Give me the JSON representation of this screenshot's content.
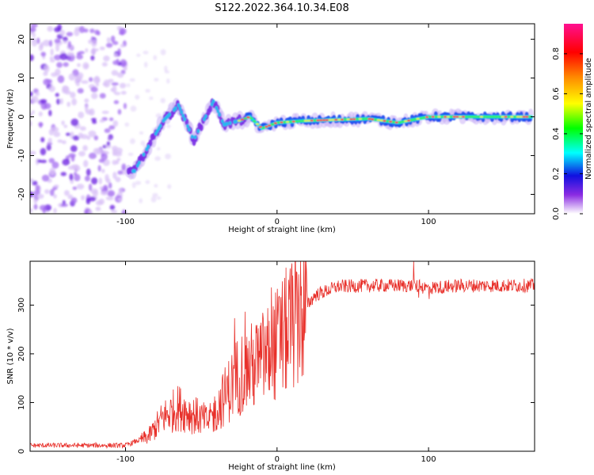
{
  "title": "S122.2022.364.10.34.E08",
  "chart_data": [
    {
      "type": "heatmap",
      "xlabel": "Height of straight line (km)",
      "ylabel": "Frequency (Hz)",
      "xlim": [
        -163,
        170
      ],
      "ylim": [
        -25,
        24
      ],
      "xticks": [
        -100,
        0,
        100
      ],
      "yticks": [
        -20,
        -10,
        0,
        10,
        20
      ],
      "colorbar": {
        "label": "Normalized spectral amplitude",
        "range": [
          0,
          0.95
        ],
        "ticks": [
          "0.0",
          "0.2",
          "0.4",
          "0.6",
          "0.8"
        ],
        "tick_values": [
          0,
          0.2,
          0.4,
          0.6,
          0.8
        ]
      },
      "noise_region_height_km": [
        -163,
        -100
      ],
      "ridge": [
        {
          "x": -94,
          "y": -14
        },
        {
          "x": -87,
          "y": -9
        },
        {
          "x": -75,
          "y": -1
        },
        {
          "x": -65,
          "y": 3
        },
        {
          "x": -55,
          "y": -6
        },
        {
          "x": -42,
          "y": 4
        },
        {
          "x": -35,
          "y": -2
        },
        {
          "x": -25,
          "y": -1
        },
        {
          "x": -18,
          "y": 0
        },
        {
          "x": -10,
          "y": -3
        },
        {
          "x": 0,
          "y": -1.5
        },
        {
          "x": 20,
          "y": -1
        },
        {
          "x": 60,
          "y": -0.5
        },
        {
          "x": 80,
          "y": -1.5
        },
        {
          "x": 100,
          "y": 0
        },
        {
          "x": 140,
          "y": 0
        },
        {
          "x": 170,
          "y": 0
        }
      ]
    },
    {
      "type": "line",
      "xlabel": "Height of straight line (km)",
      "ylabel": "SNR (10 * v/v)",
      "xlim": [
        -163,
        170
      ],
      "ylim": [
        0,
        390
      ],
      "xticks": [
        -100,
        0,
        100
      ],
      "yticks": [
        0,
        100,
        200,
        300
      ],
      "color": "#e8302a",
      "envelope": [
        {
          "x": -163,
          "y": 12
        },
        {
          "x": -100,
          "y": 12
        },
        {
          "x": -85,
          "y": 30
        },
        {
          "x": -75,
          "y": 70
        },
        {
          "x": -65,
          "y": 90
        },
        {
          "x": -55,
          "y": 75
        },
        {
          "x": -45,
          "y": 60
        },
        {
          "x": -35,
          "y": 110
        },
        {
          "x": -25,
          "y": 160
        },
        {
          "x": -15,
          "y": 175
        },
        {
          "x": -5,
          "y": 200
        },
        {
          "x": 5,
          "y": 240
        },
        {
          "x": 15,
          "y": 280
        },
        {
          "x": 25,
          "y": 320
        },
        {
          "x": 40,
          "y": 338
        },
        {
          "x": 60,
          "y": 340
        },
        {
          "x": 90,
          "y": 340
        },
        {
          "x": 100,
          "y": 335
        },
        {
          "x": 120,
          "y": 340
        },
        {
          "x": 170,
          "y": 340
        }
      ]
    }
  ]
}
